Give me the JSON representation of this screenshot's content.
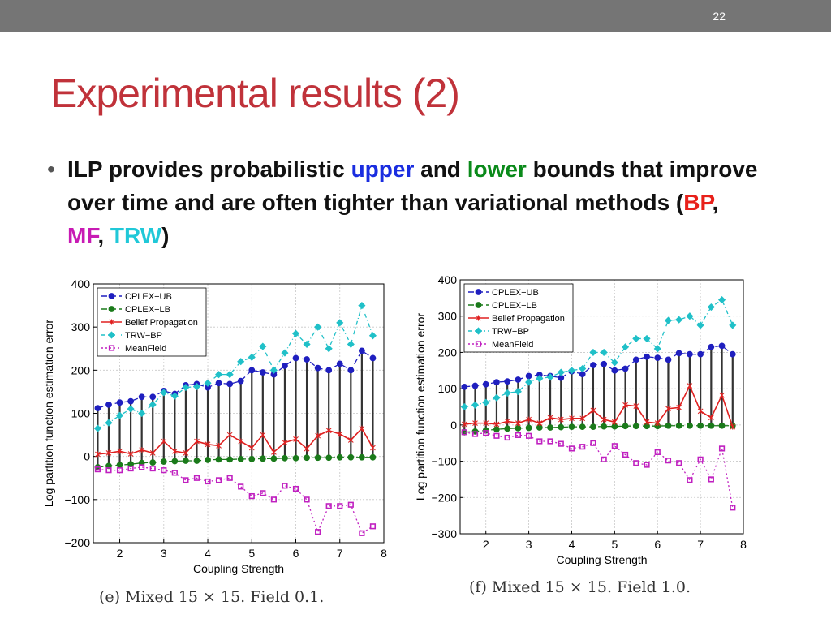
{
  "slide": {
    "number": "22",
    "title": "Experimental results (2)"
  },
  "bullet": {
    "p1": "ILP provides probabilistic ",
    "upper": "upper",
    "p2": " and ",
    "lower": "lower",
    "p3": " bounds that improve over time and are often tighter than variational methods (",
    "bp": "BP",
    "sep1": ", ",
    "mf": "MF",
    "sep2": ", ",
    "trw": "TRW",
    "p4": ")"
  },
  "colors": {
    "cplex_ub": "#1f1fbf",
    "cplex_lb": "#1a7a1a",
    "bp": "#e02020",
    "trw": "#20c0c8",
    "mf": "#c020c0",
    "errbar": "#333333"
  },
  "chart_data": [
    {
      "type": "line",
      "caption": "(e) Mixed 15 × 15. Field 0.1.",
      "xlabel": "Coupling Strength",
      "ylabel": "Log partition function estimation error",
      "xlim": [
        1.4,
        8
      ],
      "ylim": [
        -200,
        400
      ],
      "xticks": [
        2,
        3,
        4,
        5,
        6,
        7,
        8
      ],
      "yticks": [
        -200,
        -100,
        0,
        100,
        200,
        300,
        400
      ],
      "grid": true,
      "legend": "top-left",
      "x": [
        1.5,
        1.75,
        2.0,
        2.25,
        2.5,
        2.75,
        3.0,
        3.25,
        3.5,
        3.75,
        4.0,
        4.25,
        4.5,
        4.75,
        5.0,
        5.25,
        5.5,
        5.75,
        6.0,
        6.25,
        6.5,
        6.75,
        7.0,
        7.25,
        7.5,
        7.75
      ],
      "series": [
        {
          "name": "CPLEX−UB",
          "values": [
            112,
            120,
            125,
            128,
            138,
            138,
            152,
            145,
            165,
            168,
            160,
            170,
            168,
            175,
            200,
            195,
            190,
            210,
            228,
            225,
            205,
            200,
            215,
            200,
            245,
            228
          ]
        },
        {
          "name": "CPLEX−LB",
          "values": [
            -25,
            -22,
            -20,
            -18,
            -15,
            -14,
            -12,
            -11,
            -10,
            -10,
            -8,
            -7,
            -7,
            -6,
            -6,
            -5,
            -5,
            -4,
            -4,
            -3,
            -3,
            -3,
            -2,
            -2,
            -2,
            -2
          ]
        },
        {
          "name": "Belief Propagation",
          "values": [
            5,
            8,
            12,
            6,
            15,
            8,
            35,
            12,
            8,
            35,
            28,
            25,
            50,
            35,
            20,
            50,
            10,
            32,
            40,
            18,
            48,
            60,
            52,
            38,
            65,
            20
          ]
        },
        {
          "name": "TRW−BP",
          "values": [
            65,
            78,
            95,
            110,
            100,
            120,
            148,
            140,
            160,
            162,
            170,
            190,
            190,
            220,
            230,
            255,
            200,
            240,
            285,
            260,
            300,
            250,
            310,
            260,
            350,
            280
          ]
        },
        {
          "name": "MeanField",
          "values": [
            -30,
            -32,
            -32,
            -28,
            -25,
            -28,
            -32,
            -38,
            -55,
            -50,
            -58,
            -55,
            -50,
            -70,
            -92,
            -85,
            -100,
            -68,
            -75,
            -100,
            -175,
            -115,
            -115,
            -112,
            -178,
            -162
          ]
        }
      ]
    },
    {
      "type": "line",
      "caption": "(f) Mixed 15 × 15. Field 1.0.",
      "xlabel": "Coupling Strength",
      "ylabel": "Log partition function estimation error",
      "xlim": [
        1.4,
        8
      ],
      "ylim": [
        -300,
        400
      ],
      "xticks": [
        2,
        3,
        4,
        5,
        6,
        7,
        8
      ],
      "yticks": [
        -300,
        -200,
        -100,
        0,
        100,
        200,
        300,
        400
      ],
      "grid": true,
      "legend": "top-left",
      "x": [
        1.5,
        1.75,
        2.0,
        2.25,
        2.5,
        2.75,
        3.0,
        3.25,
        3.5,
        3.75,
        4.0,
        4.25,
        4.5,
        4.75,
        5.0,
        5.25,
        5.5,
        5.75,
        6.0,
        6.25,
        6.5,
        6.75,
        7.0,
        7.25,
        7.5,
        7.75
      ],
      "series": [
        {
          "name": "CPLEX−UB",
          "values": [
            105,
            108,
            112,
            118,
            120,
            125,
            135,
            138,
            135,
            130,
            148,
            140,
            165,
            168,
            150,
            155,
            180,
            188,
            185,
            180,
            198,
            195,
            195,
            215,
            218,
            195
          ]
        },
        {
          "name": "CPLEX−LB",
          "values": [
            -20,
            -18,
            -15,
            -12,
            -10,
            -9,
            -8,
            -7,
            -7,
            -6,
            -5,
            -5,
            -5,
            -4,
            -4,
            -3,
            -3,
            -3,
            -3,
            -2,
            -2,
            -2,
            -2,
            -2,
            -2,
            -2
          ]
        },
        {
          "name": "Belief Propagation",
          "values": [
            2,
            5,
            5,
            2,
            10,
            5,
            15,
            5,
            20,
            15,
            18,
            18,
            40,
            15,
            8,
            55,
            52,
            8,
            5,
            45,
            48,
            108,
            38,
            20,
            82,
            -5
          ]
        },
        {
          "name": "TRW−BP",
          "values": [
            50,
            55,
            62,
            75,
            88,
            92,
            118,
            128,
            132,
            145,
            150,
            155,
            200,
            200,
            172,
            215,
            238,
            238,
            210,
            288,
            290,
            300,
            275,
            325,
            345,
            275
          ]
        },
        {
          "name": "MeanField",
          "values": [
            -20,
            -25,
            -22,
            -30,
            -35,
            -28,
            -30,
            -45,
            -45,
            -52,
            -65,
            -60,
            -50,
            -95,
            -58,
            -82,
            -105,
            -110,
            -75,
            -98,
            -105,
            -152,
            -95,
            -150,
            -65,
            -228
          ]
        }
      ]
    }
  ]
}
